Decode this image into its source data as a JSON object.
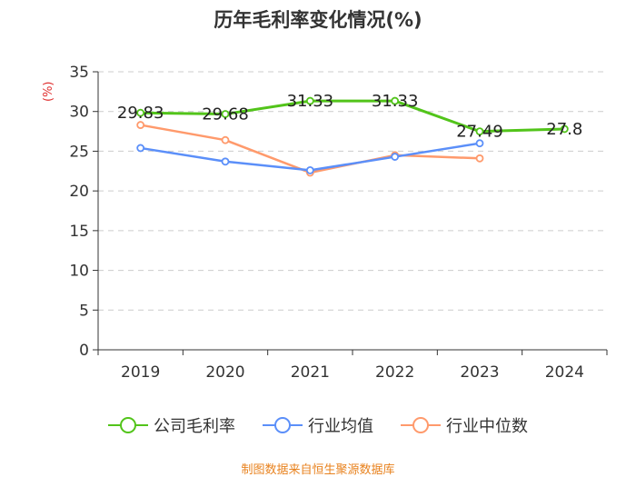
{
  "chart_data": {
    "type": "line",
    "title": "历年毛利率变化情况(%)",
    "ylabel": "(%)",
    "xlabel": "",
    "categories": [
      "2019",
      "2020",
      "2021",
      "2022",
      "2023",
      "2024"
    ],
    "ylim": [
      0,
      35
    ],
    "yticks": [
      0,
      5,
      10,
      15,
      20,
      25,
      30,
      35
    ],
    "grid": "dashed-horizontal",
    "legend_position": "bottom",
    "series": [
      {
        "name": "公司毛利率",
        "color": "#52c41a",
        "values": [
          29.83,
          29.68,
          31.33,
          31.33,
          27.49,
          27.8
        ],
        "labels": [
          "29.83",
          "29.68",
          "31.33",
          "31.33",
          "27.49",
          "27.8"
        ]
      },
      {
        "name": "行业均值",
        "color": "#5b8ff9",
        "values": [
          25.4,
          23.7,
          22.6,
          24.3,
          26.0,
          null
        ]
      },
      {
        "name": "行业中位数",
        "color": "#ff9a6c",
        "values": [
          28.3,
          26.4,
          22.3,
          24.5,
          24.1,
          null
        ]
      }
    ]
  },
  "source": "制图数据来自恒生聚源数据库"
}
